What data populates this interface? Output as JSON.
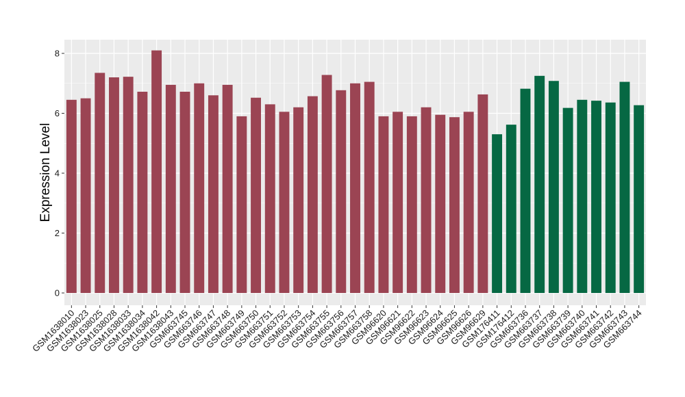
{
  "chart_data": {
    "type": "bar",
    "title": "",
    "xlabel": "",
    "ylabel": "Expression Level",
    "ylim": [
      0,
      8.5
    ],
    "yticks": [
      0,
      2,
      4,
      6,
      8
    ],
    "grid": true,
    "legend": "none",
    "background": "#EBEBEB",
    "gridline_color": "#FFFFFF",
    "categories": [
      "GSM1638010",
      "GSM1638023",
      "GSM1638025",
      "GSM1638028",
      "GSM1638033",
      "GSM1638034",
      "GSM1638042",
      "GSM1638043",
      "GSM663745",
      "GSM663746",
      "GSM663747",
      "GSM663748",
      "GSM663749",
      "GSM663750",
      "GSM663751",
      "GSM663752",
      "GSM663753",
      "GSM663754",
      "GSM663755",
      "GSM663756",
      "GSM663757",
      "GSM663758",
      "GSM96620",
      "GSM96621",
      "GSM96622",
      "GSM96623",
      "GSM96624",
      "GSM96625",
      "GSM96626",
      "GSM96629",
      "GSM176411",
      "GSM176412",
      "GSM663736",
      "GSM663737",
      "GSM663738",
      "GSM663739",
      "GSM663740",
      "GSM663741",
      "GSM663742",
      "GSM663743",
      "GSM663744"
    ],
    "values": [
      6.45,
      6.5,
      7.35,
      7.2,
      7.22,
      6.72,
      8.1,
      6.95,
      6.72,
      7.0,
      6.6,
      6.95,
      5.9,
      6.52,
      6.3,
      6.05,
      6.2,
      6.57,
      7.28,
      6.77,
      7.0,
      7.05,
      5.9,
      6.05,
      5.9,
      6.2,
      5.95,
      5.87,
      6.05,
      6.63,
      5.3,
      5.62,
      6.82,
      7.25,
      7.08,
      6.18,
      6.45,
      6.42,
      6.36,
      7.05,
      6.27
    ],
    "groups": [
      0,
      0,
      0,
      0,
      0,
      0,
      0,
      0,
      0,
      0,
      0,
      0,
      0,
      0,
      0,
      0,
      0,
      0,
      0,
      0,
      0,
      0,
      0,
      0,
      0,
      0,
      0,
      0,
      0,
      0,
      1,
      1,
      1,
      1,
      1,
      1,
      1,
      1,
      1,
      1,
      1
    ],
    "colors": [
      "#9B4453",
      "#066843"
    ]
  }
}
